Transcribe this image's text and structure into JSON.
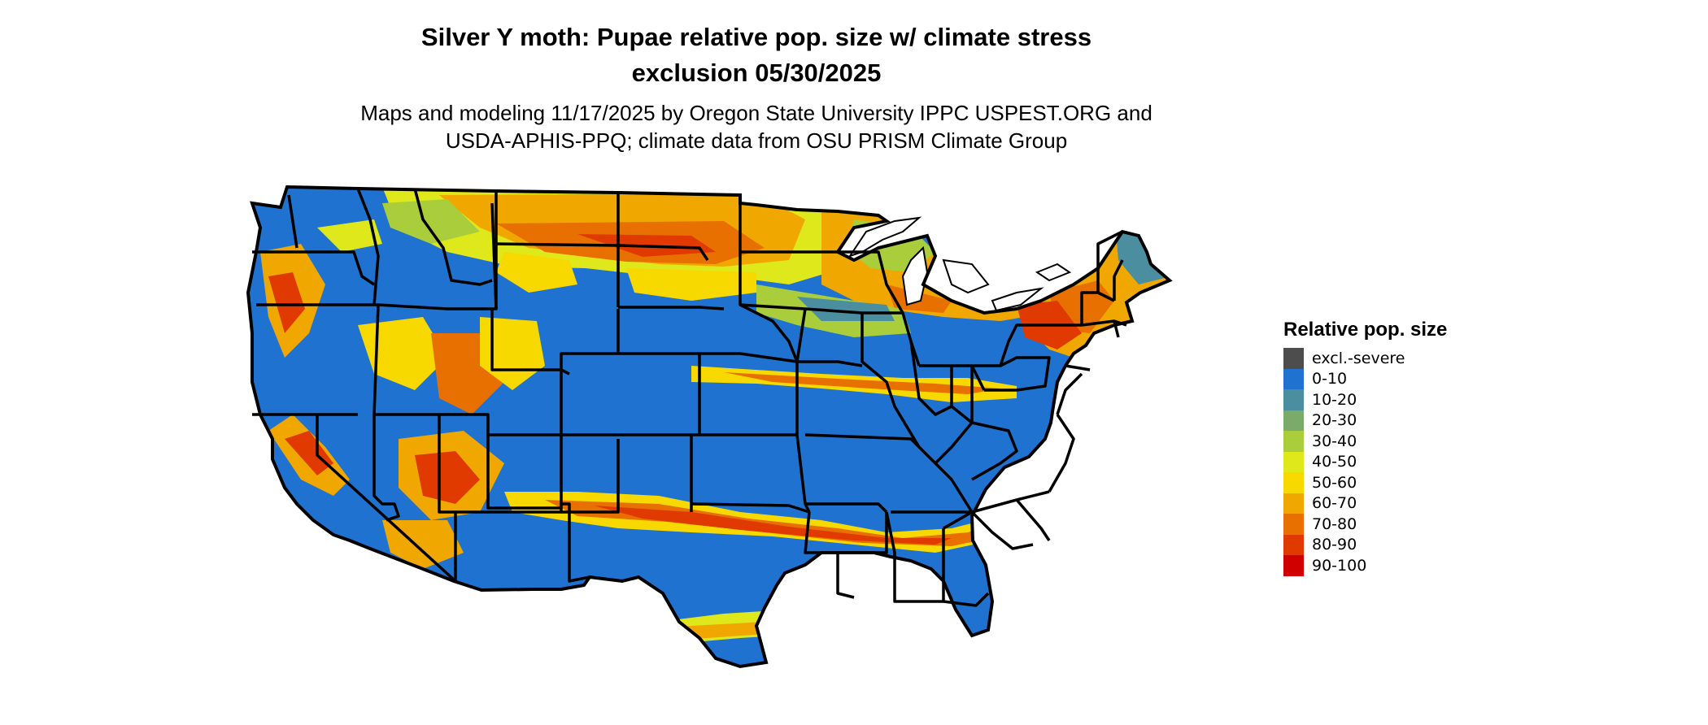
{
  "figure": {
    "title_line1": "Silver Y moth: Pupae relative pop. size w/ climate stress",
    "title_line2": "exclusion 05/30/2025",
    "subtitle_line1": "Maps and modeling 11/17/2025 by Oregon State University IPPC USPEST.ORG and",
    "subtitle_line2": "USDA-APHIS-PPQ; climate data from OSU PRISM Climate Group"
  },
  "legend": {
    "title": "Relative pop. size",
    "items": [
      {
        "label": "excl.-severe",
        "color": "#4d4d4d"
      },
      {
        "label": "0-10",
        "color": "#1f72d0"
      },
      {
        "label": "10-20",
        "color": "#4a8ea0"
      },
      {
        "label": "20-30",
        "color": "#7aab6b"
      },
      {
        "label": "30-40",
        "color": "#aacd3c"
      },
      {
        "label": "40-50",
        "color": "#dfe81a"
      },
      {
        "label": "50-60",
        "color": "#f7d900"
      },
      {
        "label": "60-70",
        "color": "#f0a800"
      },
      {
        "label": "70-80",
        "color": "#e87000"
      },
      {
        "label": "80-90",
        "color": "#e03a00"
      },
      {
        "label": "90-100",
        "color": "#d10000"
      }
    ]
  }
}
